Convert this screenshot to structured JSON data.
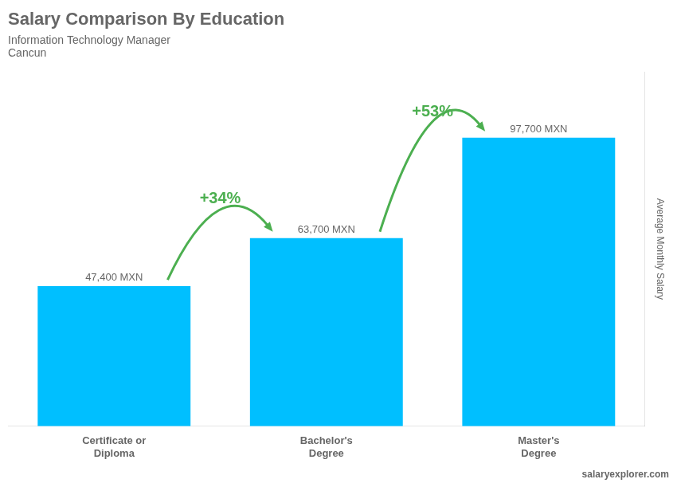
{
  "chart_data": {
    "type": "bar",
    "title": "Salary Comparison By Education",
    "subtitle": [
      "Information Technology Manager",
      "Cancun"
    ],
    "annotations": [
      "salaryexplorer.com"
    ],
    "ylabel": "Average Monthly Salary",
    "categories": [
      "Certificate or\nDiploma",
      "Bachelor's\nDegree",
      "Master's\nDegree"
    ],
    "values": [
      47400,
      63700,
      97700
    ],
    "value_labels": [
      "47,400 MXN",
      "63,700 MXN",
      "97,700 MXN"
    ],
    "change_labels": [
      "+34%",
      "+53%"
    ],
    "data_labels": true,
    "color": "#00BFFF",
    "ylim": [
      0,
      120000
    ],
    "grid": false,
    "tick_labels": "x"
  }
}
